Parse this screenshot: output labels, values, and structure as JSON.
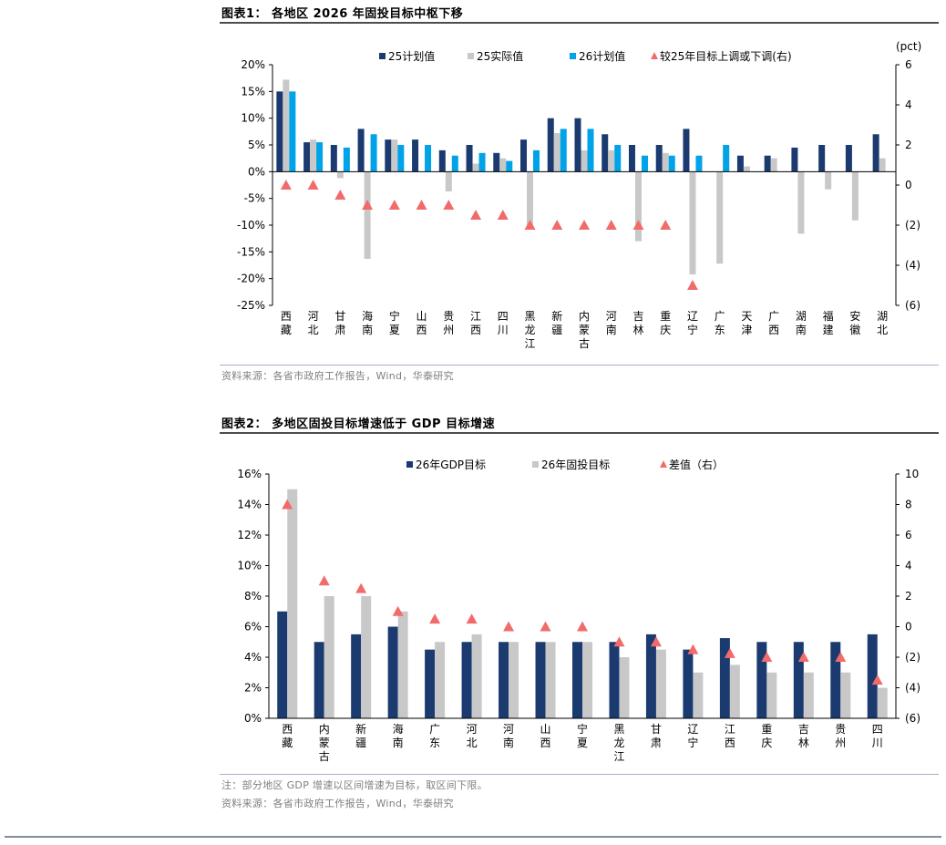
{
  "figure1": {
    "title": "图表1： 各地区 2026 年固投目标中枢下移",
    "source": "资料来源：各省市政府工作报告，Wind，华泰研究",
    "right_unit": "(pct)",
    "chart_data": {
      "type": "bar",
      "categories": [
        "西藏",
        "河北",
        "甘肃",
        "海南",
        "宁夏",
        "山西",
        "贵州",
        "江西",
        "四川",
        "黑龙江",
        "新疆",
        "内蒙古",
        "河南",
        "吉林",
        "重庆",
        "辽宁",
        "广东",
        "天津",
        "广西",
        "湖南",
        "福建",
        "安徽",
        "湖北"
      ],
      "series": [
        {
          "name": "25计划值",
          "color": "#1b3a6f",
          "axis": "left",
          "values": [
            15,
            5.5,
            5,
            8,
            6,
            6,
            4,
            5,
            3.5,
            6,
            10,
            10,
            7,
            5,
            5,
            8,
            null,
            3,
            3,
            4.5,
            5,
            5,
            7
          ]
        },
        {
          "name": "25实际值",
          "color": "#c8c8c8",
          "axis": "left",
          "values": [
            17.2,
            6,
            -1.2,
            -16.3,
            6,
            null,
            -3.7,
            1.5,
            2.5,
            -10.5,
            7.2,
            4,
            4,
            -13,
            3.5,
            -19.2,
            -17.2,
            1,
            2.5,
            -11.6,
            -3.3,
            -9.1,
            2.5
          ]
        },
        {
          "name": "26计划值",
          "color": "#00a2e8",
          "axis": "left",
          "values": [
            15,
            5.5,
            4.5,
            7,
            5,
            5,
            3,
            3.5,
            2,
            4,
            8,
            8,
            5,
            3,
            3,
            3,
            5,
            null,
            null,
            null,
            null,
            null,
            null
          ]
        },
        {
          "name": "较25年目标上调或下调(右)",
          "color": "#f26b6b",
          "axis": "right",
          "type": "scatter",
          "values": [
            0,
            0,
            -0.5,
            -1,
            -1,
            -1,
            -1,
            -1.5,
            -1.5,
            -2,
            -2,
            -2,
            -2,
            -2,
            -2,
            -5,
            null,
            null,
            null,
            null,
            null,
            null,
            null
          ]
        }
      ],
      "y_left": {
        "min": -25,
        "max": 20,
        "step": 5,
        "ticks": [
          "-25%",
          "-20%",
          "-15%",
          "-10%",
          "-5%",
          "0%",
          "5%",
          "10%",
          "15%",
          "20%"
        ]
      },
      "y_right": {
        "min": -6,
        "max": 6,
        "step": 2,
        "ticks": [
          "(6)",
          "(4)",
          "(2)",
          "0",
          "2",
          "4",
          "6"
        ]
      },
      "legend_position": "top"
    }
  },
  "figure2": {
    "title": "图表2： 多地区固投目标增速低于 GDP 目标增速",
    "note": "注：部分地区 GDP 增速以区间增速为目标，取区间下限。",
    "source": "资料来源：各省市政府工作报告，Wind，华泰研究",
    "chart_data": {
      "type": "bar",
      "categories": [
        "西藏",
        "内蒙古",
        "新疆",
        "海南",
        "广东",
        "河北",
        "河南",
        "山西",
        "宁夏",
        "黑龙江",
        "甘肃",
        "辽宁",
        "江西",
        "重庆",
        "吉林",
        "贵州",
        "四川"
      ],
      "series": [
        {
          "name": "26年GDP目标",
          "color": "#1b3a6f",
          "axis": "left",
          "values": [
            7,
            5,
            5.5,
            6,
            4.5,
            5,
            5,
            5,
            5,
            5,
            5.5,
            4.5,
            5.25,
            5,
            5,
            5,
            5.5
          ]
        },
        {
          "name": "26年固投目标",
          "color": "#c8c8c8",
          "axis": "left",
          "values": [
            15,
            8,
            8,
            7,
            5,
            5.5,
            5,
            5,
            5,
            4,
            4.5,
            3,
            3.5,
            3,
            3,
            3,
            2
          ]
        },
        {
          "name": "差值（右）",
          "color": "#f26b6b",
          "axis": "right",
          "type": "scatter",
          "values": [
            8,
            3,
            2.5,
            1,
            0.5,
            0.5,
            0,
            0,
            0,
            -1,
            -1,
            -1.5,
            -1.75,
            -2,
            -2,
            -2,
            -3.5
          ]
        }
      ],
      "y_left": {
        "min": 0,
        "max": 16,
        "step": 2,
        "ticks": [
          "0%",
          "2%",
          "4%",
          "6%",
          "8%",
          "10%",
          "12%",
          "14%",
          "16%"
        ]
      },
      "y_right": {
        "min": -6,
        "max": 10,
        "step": 2,
        "ticks": [
          "(6)",
          "(4)",
          "(2)",
          "0",
          "2",
          "4",
          "6",
          "8",
          "10"
        ]
      },
      "legend_position": "top"
    }
  }
}
